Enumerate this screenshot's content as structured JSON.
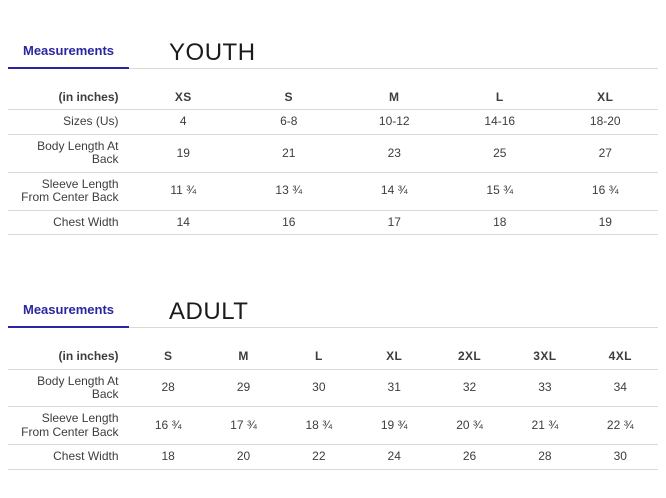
{
  "colors": {
    "accent": "#2b26a0",
    "border": "#d9d9d9",
    "text": "#3d3d3d",
    "title": "#1b1b1b"
  },
  "sections": [
    {
      "id": "youth",
      "tab_label": "Measurements",
      "title": "YOUTH",
      "unit_label": "(in inches)",
      "columns": [
        "XS",
        "S",
        "M",
        "L",
        "XL"
      ],
      "rows": [
        {
          "label": "Sizes (Us)",
          "values": [
            "4",
            "6-8",
            "10-12",
            "14-16",
            "18-20"
          ]
        },
        {
          "label": "Body Length At Back",
          "values": [
            "19",
            "21",
            "23",
            "25",
            "27"
          ]
        },
        {
          "label": "Sleeve Length From Center Back",
          "values": [
            "11 ¾",
            "13 ¾",
            "14 ¾",
            "15 ¾",
            "16 ¾"
          ]
        },
        {
          "label": "Chest Width",
          "values": [
            "14",
            "16",
            "17",
            "18",
            "19"
          ]
        }
      ]
    },
    {
      "id": "adult",
      "tab_label": "Measurements",
      "title": "ADULT",
      "unit_label": "(in inches)",
      "columns": [
        "S",
        "M",
        "L",
        "XL",
        "2XL",
        "3XL",
        "4XL"
      ],
      "rows": [
        {
          "label": "Body Length At Back",
          "values": [
            "28",
            "29",
            "30",
            "31",
            "32",
            "33",
            "34"
          ]
        },
        {
          "label": "Sleeve Length From Center Back",
          "values": [
            "16 ¾",
            "17 ¾",
            "18 ¾",
            "19 ¾",
            "20 ¾",
            "21 ¾",
            "22 ¾"
          ]
        },
        {
          "label": "Chest Width",
          "values": [
            "18",
            "20",
            "22",
            "24",
            "26",
            "28",
            "30"
          ]
        }
      ]
    }
  ]
}
